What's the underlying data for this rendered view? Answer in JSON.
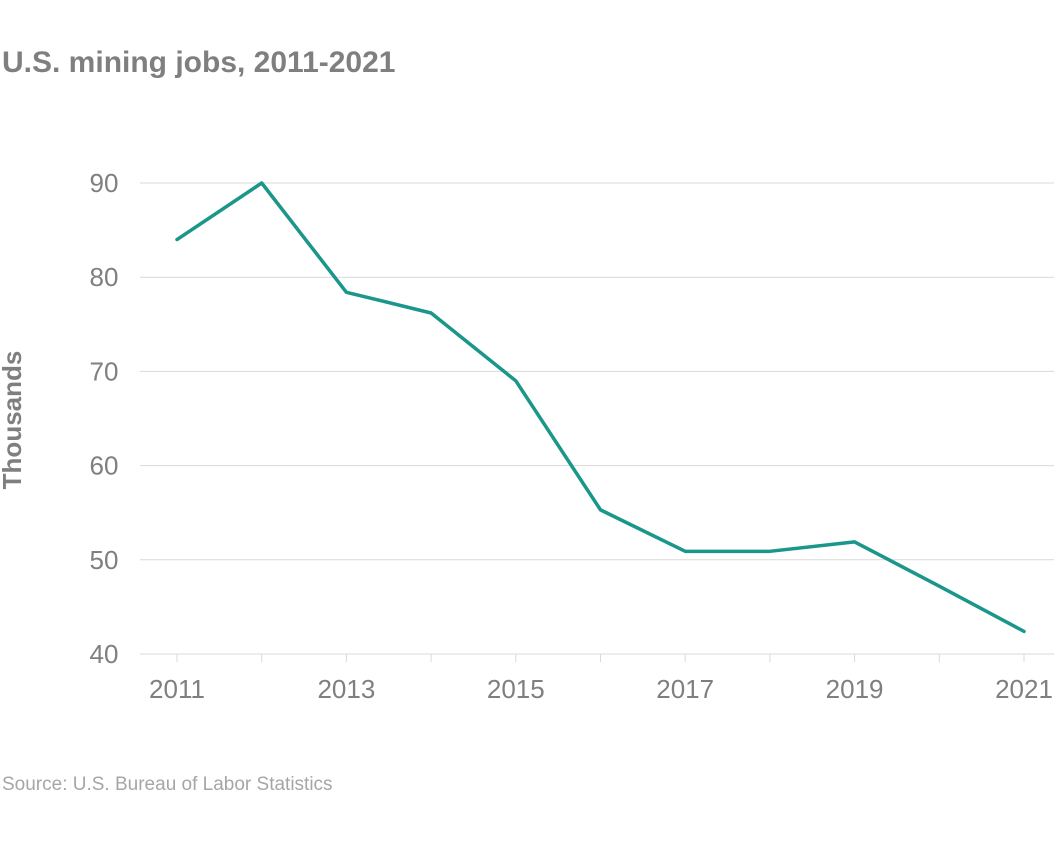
{
  "title": "U.S. mining jobs, 2011-2021",
  "source": "Source: U.S. Bureau of Labor Statistics",
  "colors": {
    "line": "#1a968a",
    "grid": "#d9d9d9",
    "text": "#7f7f7f"
  },
  "chart_data": {
    "type": "line",
    "title": "U.S. mining jobs, 2011-2021",
    "xlabel": "",
    "ylabel": "Thousands",
    "x": [
      2011,
      2012,
      2013,
      2014,
      2015,
      2016,
      2017,
      2018,
      2019,
      2020,
      2021
    ],
    "series": [
      {
        "values": [
          84,
          90,
          78.4,
          76.2,
          69,
          55.3,
          50.9,
          50.9,
          51.9,
          47.2,
          42.4
        ]
      }
    ],
    "xlim": [
      2011,
      2021
    ],
    "ylim": [
      40,
      90
    ],
    "x_tick_labels": [
      "2011",
      "2013",
      "2015",
      "2017",
      "2019",
      "2021"
    ],
    "y_tick_labels": [
      "40",
      "50",
      "60",
      "70",
      "80",
      "90"
    ],
    "grid": "horizontal",
    "legend": "none"
  }
}
